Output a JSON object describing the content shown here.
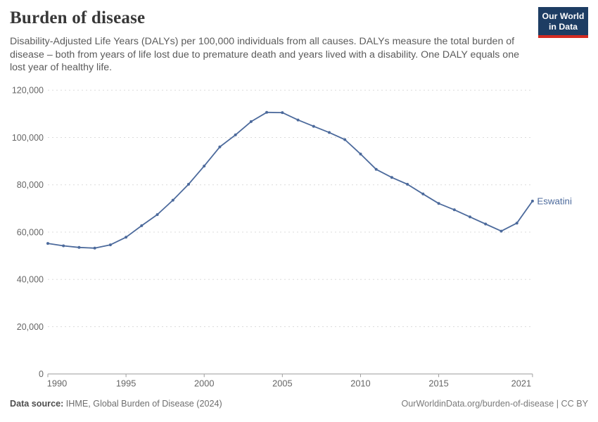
{
  "header": {
    "title": "Burden of disease",
    "subtitle": "Disability-Adjusted Life Years (DALYs) per 100,000 individuals from all causes. DALYs measure the total burden of disease – both from years of life lost due to premature death and years lived with a disability. One DALY equals one lost year of healthy life.",
    "logo": {
      "line1": "Our World",
      "line2": "in Data",
      "bg_color": "#1d3d63",
      "accent_color": "#d42b21"
    }
  },
  "chart_data": {
    "type": "line",
    "title": "Burden of disease",
    "xlabel": "",
    "ylabel": "",
    "x": [
      1990,
      1991,
      1992,
      1993,
      1994,
      1995,
      1996,
      1997,
      1998,
      1999,
      2000,
      2001,
      2002,
      2003,
      2004,
      2005,
      2006,
      2007,
      2008,
      2009,
      2010,
      2011,
      2012,
      2013,
      2014,
      2015,
      2016,
      2017,
      2018,
      2019,
      2020,
      2021
    ],
    "series": [
      {
        "name": "Eswatini",
        "color": "#4C6A9C",
        "values": [
          55200,
          54200,
          53500,
          53200,
          54600,
          57800,
          62700,
          67400,
          73500,
          80200,
          87900,
          96000,
          101100,
          106700,
          110600,
          110500,
          107400,
          104700,
          102100,
          99100,
          93000,
          86500,
          83100,
          80200,
          76100,
          72100,
          69400,
          66400,
          63400,
          60400,
          63800,
          73100
        ]
      }
    ],
    "xlim": [
      1990,
      2021
    ],
    "ylim": [
      0,
      120000
    ],
    "yticks": [
      0,
      20000,
      40000,
      60000,
      80000,
      100000,
      120000
    ],
    "ytick_labels": [
      "0",
      "20,000",
      "40,000",
      "60,000",
      "80,000",
      "100,000",
      "120,000"
    ],
    "xticks": [
      1990,
      1995,
      2000,
      2005,
      2010,
      2015,
      2021
    ],
    "xtick_labels": [
      "1990",
      "1995",
      "2000",
      "2005",
      "2010",
      "2015",
      "2021"
    ],
    "grid": "horizontal-dashed",
    "legend_position": "end-of-line-label",
    "grid_color": "#dcdcdc",
    "axis_color": "#9e9e9e",
    "tick_label_color": "#666666"
  },
  "footer": {
    "source_label": "Data source:",
    "source_text": " IHME, Global Burden of Disease (2024)",
    "right_text": "OurWorldinData.org/burden-of-disease | CC BY"
  }
}
